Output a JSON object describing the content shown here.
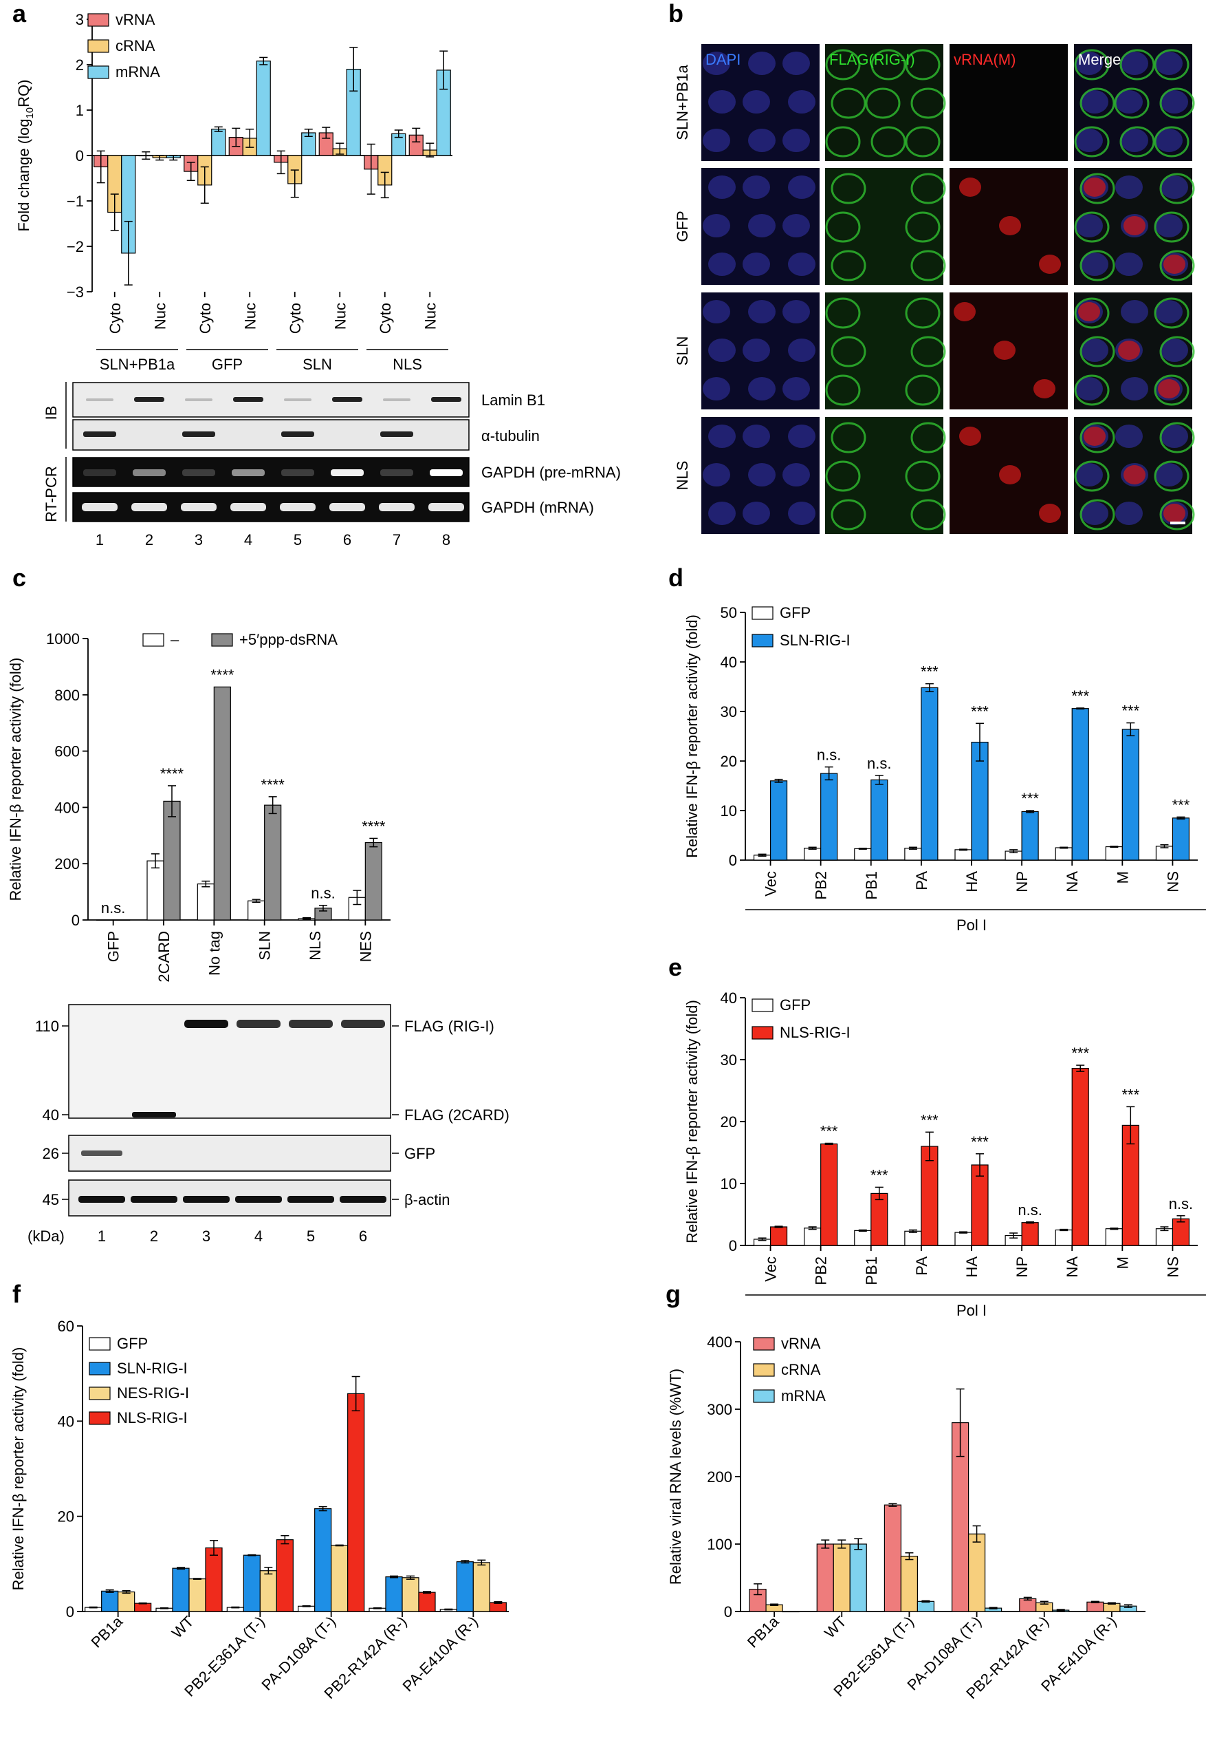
{
  "panel_labels": [
    "a",
    "b",
    "c",
    "d",
    "e",
    "f",
    "g"
  ],
  "colors": {
    "vRNA": "#ee7c7c",
    "cRNA": "#f7cf7d",
    "mRNA": "#7fd2ee",
    "gfp": "#ffffff",
    "sln": "#1e8fe6",
    "nes": "#f7d88c",
    "nls": "#ef2b1c",
    "ppp": "#8c8c8c"
  },
  "chart_data": [
    {
      "panel": "a",
      "type": "bar",
      "ylabel": "Fold change (log10RQ)",
      "ylim": [
        -3,
        3
      ],
      "yticks": [
        "−3",
        "−2",
        "−1",
        "0",
        "1",
        "2",
        "3"
      ],
      "categories": [
        "Cyto",
        "Nuc",
        "Cyto",
        "Nuc",
        "Cyto",
        "Nuc",
        "Cyto",
        "Nuc"
      ],
      "groups": [
        "SLN+PB1a",
        "GFP",
        "SLN",
        "NLS"
      ],
      "series": [
        {
          "name": "vRNA",
          "values": [
            -0.25,
            0.0,
            -0.35,
            0.4,
            -0.15,
            0.5,
            -0.3,
            0.45
          ],
          "errors": [
            0.35,
            0.08,
            0.2,
            0.2,
            0.25,
            0.12,
            0.55,
            0.15
          ]
        },
        {
          "name": "cRNA",
          "values": [
            -1.25,
            -0.05,
            -0.65,
            0.38,
            -0.62,
            0.15,
            -0.65,
            0.12
          ],
          "errors": [
            0.4,
            0.05,
            0.4,
            0.2,
            0.3,
            0.12,
            0.28,
            0.15
          ]
        },
        {
          "name": "mRNA",
          "values": [
            -2.15,
            -0.05,
            0.58,
            2.08,
            0.5,
            1.9,
            0.48,
            1.88
          ],
          "errors": [
            0.7,
            0.05,
            0.05,
            0.08,
            0.08,
            0.48,
            0.08,
            0.42
          ]
        }
      ]
    },
    {
      "panel": "c",
      "type": "bar",
      "ylabel": "Relative IFN-β reporter activity (fold)",
      "ylim": [
        0,
        1000
      ],
      "yticks": [
        "0",
        "200",
        "400",
        "600",
        "800",
        "1000"
      ],
      "categories": [
        "GFP",
        "2CARD",
        "No tag",
        "SLN",
        "NLS",
        "NES"
      ],
      "series": [
        {
          "name": "–",
          "values": [
            0,
            210,
            128,
            68,
            5,
            80
          ],
          "errors": [
            0,
            25,
            10,
            5,
            3,
            25
          ]
        },
        {
          "name": "+5′ppp-dsRNA",
          "values": [
            0,
            422,
            828,
            408,
            42,
            275
          ],
          "errors": [
            0,
            55,
            0,
            30,
            10,
            15
          ]
        }
      ],
      "annotations": [
        "n.s.",
        "****",
        "****",
        "****",
        "n.s.",
        "****"
      ]
    },
    {
      "panel": "d",
      "type": "bar",
      "ylabel": "Relative IFN-β reporter activity (fold)",
      "xlabel": "Pol I",
      "ylim": [
        0,
        50
      ],
      "yticks": [
        "0",
        "10",
        "20",
        "30",
        "40",
        "50"
      ],
      "categories": [
        "Vec",
        "PB2",
        "PB1",
        "PA",
        "HA",
        "NP",
        "NA",
        "M",
        "NS"
      ],
      "series": [
        {
          "name": "GFP",
          "values": [
            1.0,
            2.4,
            2.3,
            2.4,
            2.1,
            1.8,
            2.5,
            2.7,
            2.8
          ],
          "errors": [
            0.2,
            0.2,
            0.1,
            0.2,
            0.1,
            0.3,
            0.1,
            0.1,
            0.3
          ]
        },
        {
          "name": "SLN-RIG-I",
          "values": [
            16.0,
            17.5,
            16.2,
            34.8,
            23.8,
            9.8,
            30.6,
            26.4,
            8.5
          ],
          "errors": [
            0.3,
            1.3,
            0.9,
            0.8,
            3.8,
            0.2,
            0.1,
            1.3,
            0.2
          ]
        }
      ],
      "annotations": [
        "",
        "n.s.",
        "n.s.",
        "***",
        "***",
        "***",
        "***",
        "***",
        "***"
      ]
    },
    {
      "panel": "e",
      "type": "bar",
      "ylabel": "Relative IFN-β reporter activity (fold)",
      "xlabel": "Pol I",
      "ylim": [
        0,
        40
      ],
      "yticks": [
        "0",
        "10",
        "20",
        "30",
        "40"
      ],
      "categories": [
        "Vec",
        "PB2",
        "PB1",
        "PA",
        "HA",
        "NP",
        "NA",
        "M",
        "NS"
      ],
      "series": [
        {
          "name": "GFP",
          "values": [
            1.0,
            2.8,
            2.4,
            2.3,
            2.1,
            1.6,
            2.5,
            2.7,
            2.7
          ],
          "errors": [
            0.2,
            0.2,
            0.1,
            0.2,
            0.1,
            0.4,
            0.1,
            0.1,
            0.3
          ]
        },
        {
          "name": "NLS-RIG-I",
          "values": [
            3.0,
            16.4,
            8.4,
            16.0,
            13.0,
            3.7,
            28.6,
            19.4,
            4.3
          ],
          "errors": [
            0.1,
            0.1,
            1.0,
            2.3,
            1.8,
            0.1,
            0.5,
            3.0,
            0.5
          ]
        }
      ],
      "annotations": [
        "",
        "***",
        "***",
        "***",
        "***",
        "n.s.",
        "***",
        "***",
        "n.s."
      ]
    },
    {
      "panel": "f",
      "type": "bar",
      "ylabel": "Relative IFN-β reporter activity (fold)",
      "ylim": [
        0,
        70
      ],
      "yticks": [
        "0",
        "20",
        "40",
        "60"
      ],
      "categories": [
        "PB1a",
        "WT",
        "PB2-E361A (T-)",
        "PA-D108A (T-)",
        "PB2-R142A (R-)",
        "PA-E410A (R-)"
      ],
      "series": [
        {
          "name": "GFP",
          "values": [
            1.0,
            0.8,
            1.0,
            1.3,
            0.8,
            0.5
          ],
          "errors": [
            0.1,
            0.1,
            0.1,
            0.1,
            0.1,
            0.1
          ]
        },
        {
          "name": "SLN-RIG-I",
          "values": [
            5.0,
            10.6,
            13.8,
            25.2,
            8.5,
            12.2
          ],
          "errors": [
            0.3,
            0.2,
            0.1,
            0.5,
            0.2,
            0.3
          ]
        },
        {
          "name": "NES-RIG-I",
          "values": [
            4.8,
            8.0,
            10.0,
            16.2,
            8.3,
            12.0
          ],
          "errors": [
            0.3,
            0.1,
            0.8,
            0.1,
            0.4,
            0.6
          ]
        },
        {
          "name": "NLS-RIG-I",
          "values": [
            2.0,
            15.6,
            17.6,
            53.4,
            4.7,
            2.2
          ],
          "errors": [
            0.1,
            1.8,
            1.0,
            4.2,
            0.2,
            0.2
          ]
        }
      ]
    },
    {
      "panel": "g",
      "type": "bar",
      "ylabel": "Relative viral RNA levels (%WT)",
      "ylim": [
        0,
        400
      ],
      "yticks": [
        "0",
        "100",
        "200",
        "300",
        "400"
      ],
      "categories": [
        "PB1a",
        "WT",
        "PB2-E361A (T-)",
        "PA-D108A (T-)",
        "PB2-R142A (R-)",
        "PA-E410A (R-)"
      ],
      "series": [
        {
          "name": "vRNA",
          "values": [
            33,
            100,
            158,
            280,
            19,
            14
          ],
          "errors": [
            8,
            6,
            2,
            50,
            2,
            1
          ]
        },
        {
          "name": "cRNA",
          "values": [
            10,
            100,
            82,
            115,
            13,
            12
          ],
          "errors": [
            1,
            6,
            5,
            12,
            2,
            1
          ]
        },
        {
          "name": "mRNA",
          "values": [
            0,
            100,
            15,
            5,
            2,
            8
          ],
          "errors": [
            0,
            8,
            1,
            1,
            1,
            2
          ]
        }
      ]
    }
  ],
  "blot_a": {
    "side_labels": [
      "IB",
      "RT-PCR"
    ],
    "bands": [
      "Lamin B1",
      "α-tubulin",
      "GAPDH (pre-mRNA)",
      "GAPDH (mRNA)"
    ],
    "lanes": [
      "1",
      "2",
      "3",
      "4",
      "5",
      "6",
      "7",
      "8"
    ]
  },
  "micro_b": {
    "columns": [
      "DAPI",
      "FLAG(RIG-I)",
      "vRNA(M)",
      "Merge"
    ],
    "rows": [
      "SLN+PB1a",
      "GFP",
      "SLN",
      "NLS"
    ]
  },
  "blot_c": {
    "mw": [
      "110",
      "40",
      "26",
      "45"
    ],
    "bands": [
      "FLAG (RIG-I)",
      "FLAG (2CARD)",
      "GFP",
      "β-actin"
    ],
    "kda": "(kDa)",
    "lanes": [
      "1",
      "2",
      "3",
      "4",
      "5",
      "6"
    ]
  }
}
